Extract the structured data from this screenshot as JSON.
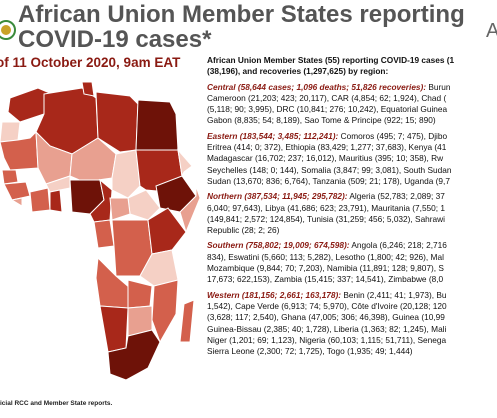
{
  "header": {
    "title_line1": "African Union Member States reporting",
    "title_line2": "COVID-19 cases*",
    "date": "of 11 October 2020, 9am EAT",
    "right_mark": "A"
  },
  "source_note": "icial RCC and Member State reports.",
  "intro": [
    "African Union Member States (55) reporting COVID-19 cases (1",
    "(38,196), and recoveries (1,297,625) by region:"
  ],
  "regions": [
    {
      "heading": "Central (58,644 cases; 1,096 deaths; 51,826 recoveries):",
      "first_line_rest": " Burun",
      "lines": [
        "Cameroon (21,203; 423; 20,117), CAR (4,854; 62; 1,924), Chad (",
        "(5,118; 90; 3,995), DRC (10,841; 276; 10,242), Equatorial Guinea",
        "Gabon (8,835; 54; 8,189), Sao Tome & Principe (922; 15; 890)"
      ]
    },
    {
      "heading": "Eastern (183,544; 3,485; 112,241):",
      "first_line_rest": " Comoros (495; 7; 475), Djibo",
      "lines": [
        "Eritrea (414; 0; 372), Ethiopia (83,429; 1,277; 37,683), Kenya (41",
        "Madagascar (16,702; 237; 16,012), Mauritius (395; 10; 358), Rw",
        "Seychelles (148; 0; 144), Somalia (3,847; 99; 3,081), South Sudan",
        "Sudan (13,670; 836; 6,764), Tanzania (509; 21; 178), Uganda (9,7"
      ]
    },
    {
      "heading": "Northern (387,534; 11,945; 295,782):",
      "first_line_rest": " Algeria (52,783; 2,089; 37",
      "lines": [
        "6,040; 97,643), Libya (41,686; 623; 23,791), Mauritania (7,550; 1",
        "(149,841; 2,572; 124,854), Tunisia (31,259; 456; 5,032), Sahrawi",
        "Republic (28; 2; 26)"
      ]
    },
    {
      "heading": "Southern (758,802; 19,009; 674,598):",
      "first_line_rest": " Angola (6,246; 218; 2,716",
      "lines": [
        "834), Eswatini (5,660; 113; 5,282), Lesotho (1,800; 42; 926), Mal",
        "Mozambique (9,844; 70; 7,203), Namibia (11,891; 128; 9,807), S",
        "17,673; 622,153), Zambia (15,415; 337; 14,541), Zimbabwe (8,0"
      ]
    },
    {
      "heading": "Western (181,156; 2,661; 163,178):",
      "first_line_rest": " Benin (2,411; 41; 1,973), Bu",
      "lines": [
        "1,542), Cape Verde (6,913; 74; 5,970), Côte d'Ivoire (20,128; 120",
        "(3,628; 117; 2,540), Ghana (47,005; 306; 46,398), Guinea (10,99",
        "Guinea-Bissau (2,385; 40; 1,728), Liberia (1,363; 82; 1,245), Mali",
        "Niger (1,201; 69; 1,123), Nigeria (60,103; 1,115; 51,711), Senega",
        "Sierra Leone (2,300; 72; 1,725), Togo (1,935; 49; 1,444)"
      ]
    }
  ],
  "colors": {
    "title_gray": "#555555",
    "accent_dark_red": "#8a1a12",
    "map_very_high": "#6e1208",
    "map_high": "#a8281a",
    "map_medium": "#d3604c",
    "map_low": "#e8a090",
    "map_very_low": "#f5d0c5"
  },
  "icons": {
    "logo": "au-emblem-icon",
    "map": "africa-choropleth-map"
  }
}
